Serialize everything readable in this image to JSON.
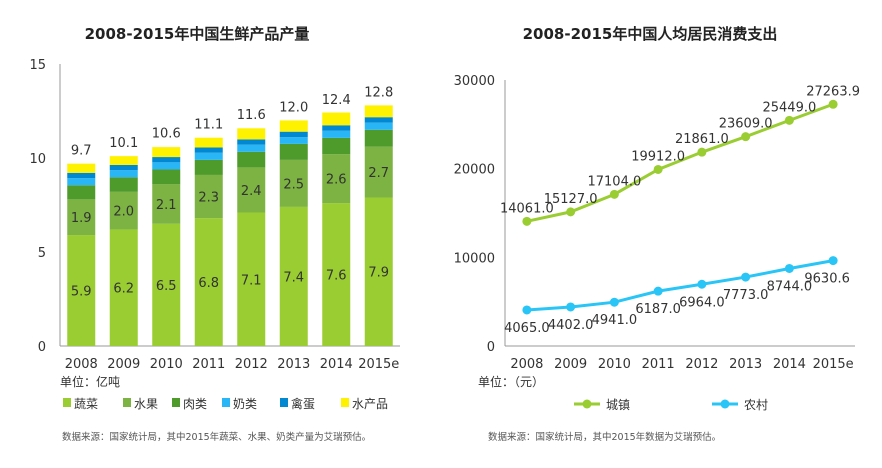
{
  "chart_data": [
    {
      "type": "bar",
      "stacked": true,
      "title": "2008-2015年中国生鲜产品产量",
      "categories": [
        "2008",
        "2009",
        "2010",
        "2011",
        "2012",
        "2013",
        "2014",
        "2015e"
      ],
      "y_ticks": [
        "0",
        "5",
        "10",
        "15"
      ],
      "ylim": [
        0,
        15
      ],
      "unit_label": "单位：亿吨",
      "totals": [
        "9.7",
        "10.1",
        "10.6",
        "11.1",
        "11.6",
        "12.0",
        "12.4",
        "12.8"
      ],
      "total_values": [
        9.7,
        10.1,
        10.6,
        11.1,
        11.6,
        12.0,
        12.4,
        12.8
      ],
      "series": [
        {
          "name": "蔬菜",
          "color": "#9ACD32",
          "values": [
            5.9,
            6.2,
            6.5,
            6.8,
            7.1,
            7.4,
            7.6,
            7.9
          ],
          "labels": [
            "5.9",
            "6.2",
            "6.5",
            "6.8",
            "7.1",
            "7.4",
            "7.6",
            "7.9"
          ]
        },
        {
          "name": "水果",
          "color": "#7CB342",
          "values": [
            1.9,
            2.0,
            2.1,
            2.3,
            2.4,
            2.5,
            2.6,
            2.7
          ],
          "labels": [
            "1.9",
            "2.0",
            "2.1",
            "2.3",
            "2.4",
            "2.5",
            "2.6",
            "2.7"
          ]
        },
        {
          "name": "肉类",
          "color": "#4E9A2A",
          "values": [
            0.75,
            0.77,
            0.79,
            0.8,
            0.83,
            0.85,
            0.87,
            0.9
          ]
        },
        {
          "name": "奶类",
          "color": "#29B6F6",
          "values": [
            0.38,
            0.38,
            0.38,
            0.38,
            0.38,
            0.36,
            0.38,
            0.38
          ]
        },
        {
          "name": "禽蛋",
          "color": "#0288D1",
          "values": [
            0.28,
            0.28,
            0.28,
            0.28,
            0.28,
            0.29,
            0.29,
            0.29
          ]
        },
        {
          "name": "水产品",
          "color": "#FFF200",
          "values": [
            0.49,
            0.47,
            0.53,
            0.52,
            0.59,
            0.6,
            0.68,
            0.63
          ]
        }
      ],
      "grid": false,
      "legend_position": "bottom",
      "source": "数据来源：国家统计局，其中2015年蔬菜、水果、奶类产量为艾瑞预估。"
    },
    {
      "type": "line",
      "title": "2008-2015年中国人均居民消费支出",
      "categories": [
        "2008",
        "2009",
        "2010",
        "2011",
        "2012",
        "2013",
        "2014",
        "2015e"
      ],
      "y_ticks": [
        "0",
        "10000",
        "20000",
        "30000"
      ],
      "ylim": [
        0,
        30000
      ],
      "unit_label": "单位：（元）",
      "series": [
        {
          "name": "城镇",
          "color": "#9ACD32",
          "values": [
            14061.0,
            15127.0,
            17104.0,
            19912.0,
            21861.0,
            23609.0,
            25449.0,
            27263.9
          ],
          "labels": [
            "14061.0",
            "15127.0",
            "17104.0",
            "19912.0",
            "21861.0",
            "23609.0",
            "25449.0",
            "27263.9"
          ]
        },
        {
          "name": "农村",
          "color": "#29C5F6",
          "values": [
            4065.0,
            4402.0,
            4941.0,
            6187.0,
            6964.0,
            7773.0,
            8744.0,
            9630.6
          ],
          "labels": [
            "4065.0",
            "4402.0",
            "4941.0",
            "6187.0",
            "6964.0",
            "7773.0",
            "8744.0",
            "9630.6"
          ]
        }
      ],
      "grid": false,
      "legend_position": "bottom",
      "source": "数据来源：国家统计局，其中2015年数据为艾瑞预估。"
    }
  ]
}
